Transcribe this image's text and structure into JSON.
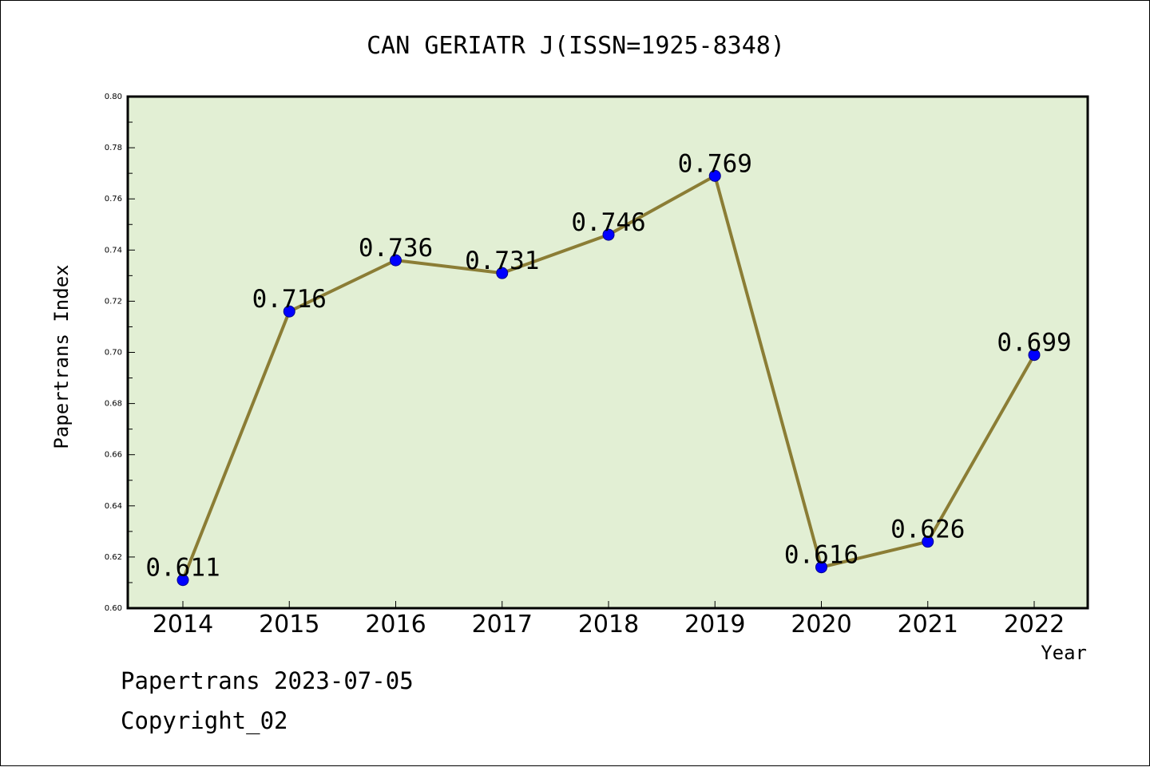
{
  "chart_data": {
    "type": "line",
    "title": "CAN GERIATR J(ISSN=1925-8348)",
    "xlabel": "Year",
    "ylabel": "Papertrans Index",
    "categories": [
      "2014",
      "2015",
      "2016",
      "2017",
      "2018",
      "2019",
      "2020",
      "2021",
      "2022"
    ],
    "values": [
      0.611,
      0.716,
      0.736,
      0.731,
      0.746,
      0.769,
      0.616,
      0.626,
      0.699
    ],
    "data_labels": [
      "0.611",
      "0.716",
      "0.736",
      "0.731",
      "0.746",
      "0.769",
      "0.616",
      "0.626",
      "0.699"
    ],
    "ylim": [
      0.6,
      0.8
    ],
    "y_ticks": [
      "0.60",
      "0.62",
      "0.64",
      "0.66",
      "0.68",
      "0.70",
      "0.72",
      "0.74",
      "0.76",
      "0.78",
      "0.80"
    ],
    "grid": false,
    "legend": "none",
    "colors": {
      "plot_background": "#e2efd4",
      "line": "#8b7d35",
      "marker": "#0000ff"
    }
  },
  "footer": {
    "line1": "Papertrans 2023-07-05",
    "line2": "Copyright_02"
  }
}
